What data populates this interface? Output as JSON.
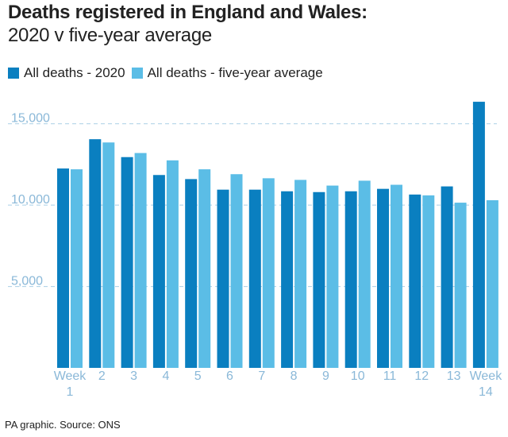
{
  "chart_data": {
    "type": "bar",
    "title": "Deaths registered in England and Wales:",
    "subtitle": "2020 v five-year average",
    "categories": [
      "Week 1",
      "2",
      "3",
      "4",
      "5",
      "6",
      "7",
      "8",
      "9",
      "10",
      "11",
      "12",
      "13",
      "Week 14"
    ],
    "series": [
      {
        "name": "All deaths - 2020",
        "color": "#0a7fc0",
        "values": [
          12250,
          14050,
          12950,
          11850,
          11600,
          10950,
          10950,
          10850,
          10800,
          10850,
          11000,
          10650,
          11150,
          16350
        ]
      },
      {
        "name": "All deaths - five-year average",
        "color": "#5bbde6",
        "values": [
          12200,
          13850,
          13200,
          12750,
          12200,
          11900,
          11650,
          11550,
          11200,
          11500,
          11250,
          10600,
          10150,
          10300
        ]
      }
    ],
    "yticks": [
      {
        "value": 5000,
        "label": "5,000"
      },
      {
        "value": 10000,
        "label": "10,000"
      },
      {
        "value": 15000,
        "label": "15,000"
      }
    ],
    "ylim": [
      0,
      16500
    ],
    "xlabel": "",
    "ylabel": "",
    "gridlines": "dashed",
    "legend_position": "top-left",
    "source": "PA graphic. Source: ONS"
  }
}
